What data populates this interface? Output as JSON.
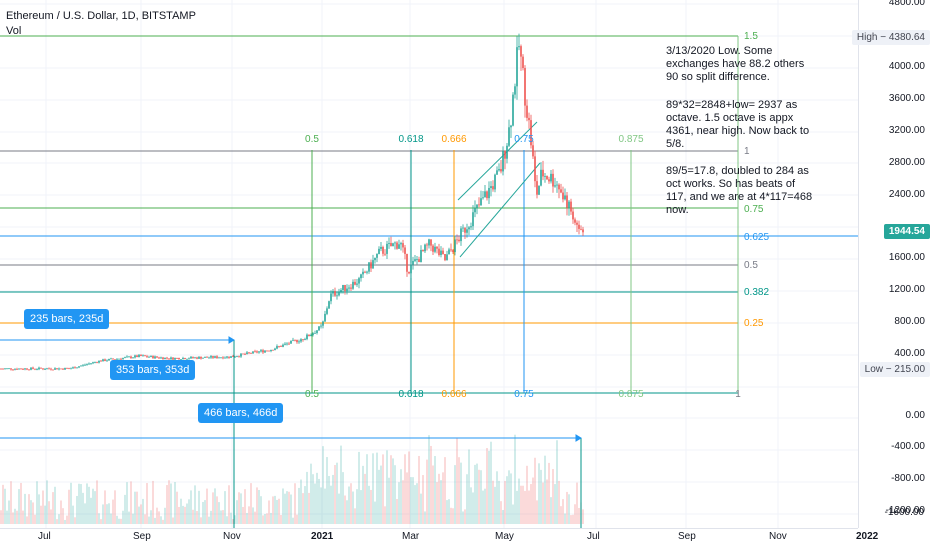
{
  "header": {
    "symbol": "Ethereum / U.S. Dollar, 1D, BITSTAMP",
    "indicator": "Vol"
  },
  "notes": [
    "3/13/2020 Low. Some exchanges have 88.2 others 90 so split difference.",
    "89*32=2848+low= 2937 as octave. 1.5 octave is appx 4361, near high. Now back to 5/8.",
    "89/5=17.8, doubled to 284 as oct works. So has beats of 117, and we are at 4*117=468 now."
  ],
  "price_labels": {
    "high": "High − 4380.64",
    "last": "1944.54",
    "low": "Low − 215.00"
  },
  "bar_badges": [
    "235 bars, 235d",
    "353 bars, 353d",
    "466 bars, 466d"
  ],
  "fib_price_levels": [
    "1.5",
    "1",
    "0.75",
    "0.625",
    "0.5",
    "0.382",
    "0.25"
  ],
  "fib_time_top": [
    "0.5",
    "0.618",
    "0.666",
    "0.75",
    "0.875"
  ],
  "fib_time_bottom": [
    "0.5",
    "0.618",
    "0.666",
    "0.75",
    "0.875",
    "1"
  ],
  "y_axis_labels": [
    "4800.00",
    "4000.00",
    "3600.00",
    "3200.00",
    "2800.00",
    "2400.00",
    "1600.00",
    "1200.00",
    "800.00",
    "400.00",
    "0.00",
    "-400.00",
    "-800.00",
    "-1200.00",
    "-1600.00"
  ],
  "x_axis_labels": [
    "Jul",
    "Sep",
    "Nov",
    "2021",
    "Mar",
    "May",
    "Jul",
    "Sep",
    "Nov",
    "2022"
  ],
  "colors": {
    "up": "#26a69a",
    "down": "#ef5350",
    "badge": "#2196f3",
    "fib_green": "#4caf50",
    "fib_teal": "#009688",
    "fib_orange": "#ff9800",
    "fib_blue": "#2196f3",
    "fib_gray": "#787b86",
    "fib_light_green": "#81c784"
  }
}
